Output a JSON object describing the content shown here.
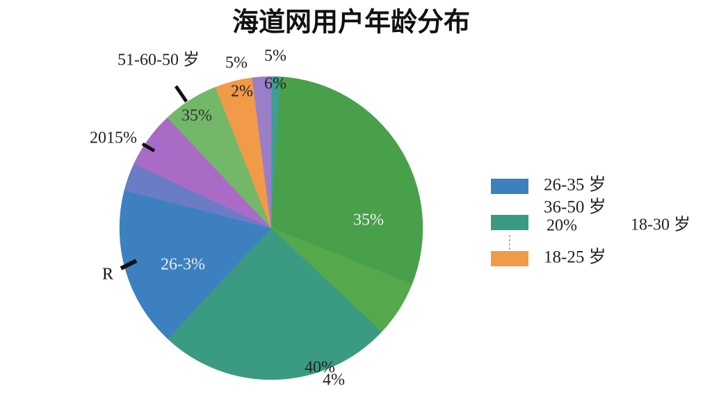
{
  "chart_data": {
    "type": "pie",
    "title": "海道网用户年龄分布",
    "values": [
      1,
      30,
      6,
      25,
      17,
      3,
      6,
      6,
      4,
      2
    ],
    "colors": [
      "#3f9e8e",
      "#48a04a",
      "#56a84c",
      "#3a9a82",
      "#3d80c0",
      "#6b7cc6",
      "#a96bc6",
      "#72b868",
      "#f19a47",
      "#9b7ec8"
    ],
    "legend": [
      {
        "name": "26-35 岁",
        "color": "#3d80c0"
      },
      {
        "name": "36-50 岁",
        "color": "#3a9a82"
      },
      {
        "name": "18-25 岁",
        "color": "#f19a47"
      }
    ],
    "annotations": [
      "51-60-50 岁",
      "5%",
      "5%",
      "2%",
      "6%",
      "35%",
      "2015%",
      "35%",
      "26-3%",
      "R",
      "40%",
      "4%",
      "20%",
      "18-30 岁"
    ]
  }
}
